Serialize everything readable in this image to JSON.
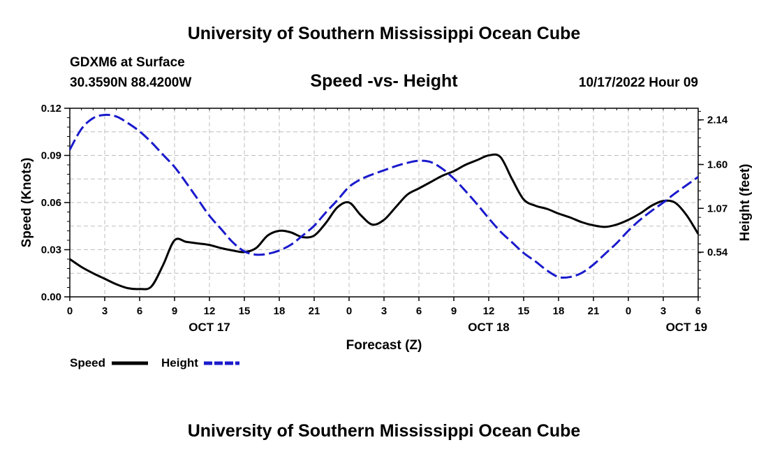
{
  "header": {
    "title": "University of Southern Mississippi Ocean Cube",
    "station": "GDXM6 at Surface",
    "location": "30.3590N  88.4200W",
    "datetime": "10/17/2022 Hour 09",
    "footer_title": "University of Southern Mississippi Ocean Cube"
  },
  "chart_data": {
    "type": "line",
    "title": "Speed -vs- Height",
    "xlabel": "Forecast (Z)",
    "ylabel": "Speed (Knots)",
    "y2label": "Height (feet)",
    "x_range": [
      0,
      54
    ],
    "x_ticks": [
      {
        "x": 0,
        "label": "0"
      },
      {
        "x": 3,
        "label": "3"
      },
      {
        "x": 6,
        "label": "6"
      },
      {
        "x": 9,
        "label": "9"
      },
      {
        "x": 12,
        "label": "12"
      },
      {
        "x": 15,
        "label": "15"
      },
      {
        "x": 18,
        "label": "18"
      },
      {
        "x": 21,
        "label": "21"
      },
      {
        "x": 24,
        "label": "0"
      },
      {
        "x": 27,
        "label": "3"
      },
      {
        "x": 30,
        "label": "6"
      },
      {
        "x": 33,
        "label": "9"
      },
      {
        "x": 36,
        "label": "12"
      },
      {
        "x": 39,
        "label": "15"
      },
      {
        "x": 42,
        "label": "18"
      },
      {
        "x": 45,
        "label": "21"
      },
      {
        "x": 48,
        "label": "0"
      },
      {
        "x": 51,
        "label": "3"
      },
      {
        "x": 54,
        "label": "6"
      }
    ],
    "day_labels": [
      {
        "x": 12,
        "label": "OCT 17"
      },
      {
        "x": 36,
        "label": "OCT 18"
      },
      {
        "x": 53,
        "label": "OCT 19"
      }
    ],
    "ylim": [
      0,
      0.12
    ],
    "y_ticks": [
      {
        "v": 0.0,
        "label": "0.00"
      },
      {
        "v": 0.03,
        "label": "0.03"
      },
      {
        "v": 0.06,
        "label": "0.06"
      },
      {
        "v": 0.09,
        "label": "0.09"
      },
      {
        "v": 0.12,
        "label": "0.12"
      }
    ],
    "y2lim": [
      0.0,
      2.28
    ],
    "y2_ticks": [
      {
        "v": 0.54,
        "label": "0.54"
      },
      {
        "v": 1.07,
        "label": "1.07"
      },
      {
        "v": 1.6,
        "label": "1.60"
      },
      {
        "v": 2.14,
        "label": "2.14"
      }
    ],
    "series": [
      {
        "name": "Speed",
        "axis": "left",
        "color": "#000000",
        "dash": "solid",
        "x": [
          0,
          1,
          2,
          3,
          4,
          5,
          6,
          7,
          8,
          9,
          10,
          11,
          12,
          13,
          14,
          15,
          16,
          17,
          18,
          19,
          20,
          21,
          22,
          23,
          24,
          25,
          26,
          27,
          28,
          29,
          30,
          31,
          32,
          33,
          34,
          35,
          36,
          37,
          38,
          39,
          40,
          41,
          42,
          43,
          44,
          45,
          46,
          47,
          48,
          49,
          50,
          51,
          52,
          53,
          54
        ],
        "values": [
          0.024,
          0.019,
          0.015,
          0.0115,
          0.008,
          0.0055,
          0.005,
          0.0065,
          0.02,
          0.036,
          0.035,
          0.034,
          0.033,
          0.031,
          0.0295,
          0.0285,
          0.031,
          0.039,
          0.042,
          0.041,
          0.038,
          0.039,
          0.047,
          0.057,
          0.06,
          0.052,
          0.046,
          0.049,
          0.057,
          0.065,
          0.069,
          0.073,
          0.077,
          0.08,
          0.084,
          0.087,
          0.09,
          0.089,
          0.075,
          0.062,
          0.058,
          0.056,
          0.053,
          0.0505,
          0.0475,
          0.0455,
          0.0445,
          0.046,
          0.049,
          0.053,
          0.058,
          0.061,
          0.06,
          0.052,
          0.04
        ]
      },
      {
        "name": "Height",
        "axis": "right",
        "color": "#1a1acc",
        "dash": "dashed",
        "x": [
          0,
          1,
          2,
          3,
          4,
          5,
          6,
          7,
          8,
          9,
          10,
          11,
          12,
          13,
          14,
          15,
          16,
          17,
          18,
          19,
          20,
          21,
          22,
          23,
          24,
          25,
          26,
          27,
          28,
          29,
          30,
          31,
          32,
          33,
          34,
          35,
          36,
          37,
          38,
          39,
          40,
          41,
          42,
          43,
          44,
          45,
          46,
          47,
          48,
          49,
          50,
          51,
          52,
          53,
          54
        ],
        "values": [
          1.78,
          2.03,
          2.16,
          2.2,
          2.18,
          2.1,
          2.0,
          1.87,
          1.72,
          1.57,
          1.38,
          1.18,
          0.98,
          0.82,
          0.66,
          0.55,
          0.51,
          0.52,
          0.56,
          0.63,
          0.74,
          0.86,
          1.02,
          1.17,
          1.33,
          1.42,
          1.48,
          1.53,
          1.58,
          1.62,
          1.645,
          1.63,
          1.55,
          1.43,
          1.28,
          1.12,
          0.95,
          0.79,
          0.66,
          0.53,
          0.43,
          0.32,
          0.24,
          0.24,
          0.29,
          0.39,
          0.52,
          0.65,
          0.8,
          0.93,
          1.04,
          1.14,
          1.25,
          1.35,
          1.45
        ]
      }
    ],
    "legend": [
      {
        "name": "Speed",
        "color": "#000000",
        "dash": "solid"
      },
      {
        "name": "Height",
        "color": "#1a1acc",
        "dash": "dashed"
      }
    ],
    "legend_position": "bottom-left",
    "grid": true
  }
}
